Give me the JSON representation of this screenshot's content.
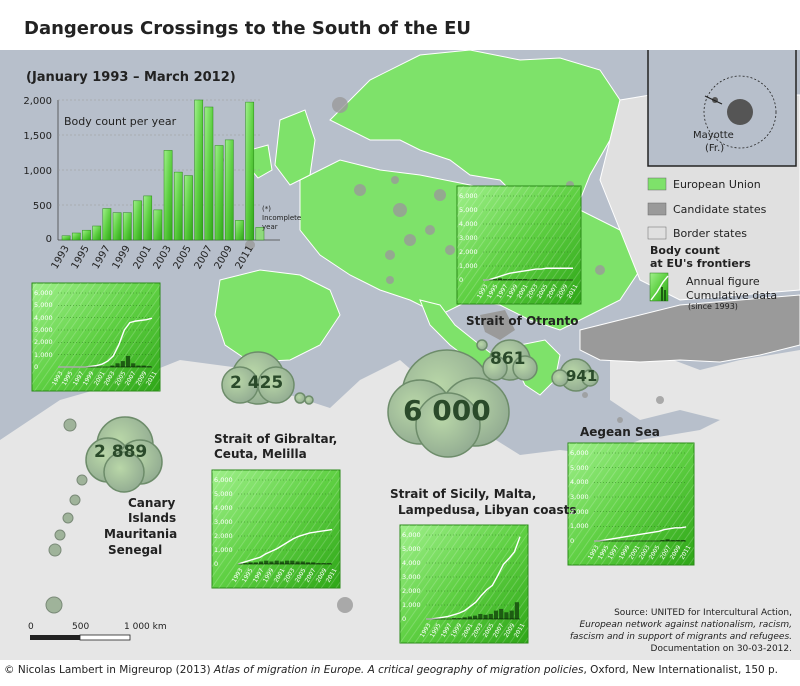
{
  "title": "Dangerous Crossings to the South of the EU",
  "period": "(January 1993 – March 2012)",
  "main_chart": {
    "label": "Body count per year",
    "incomplete_note": "(*) Incomplete year",
    "y_ticks": [
      "2,000",
      "1,500",
      "1,000",
      "500",
      "0"
    ],
    "x_ticks": [
      "1993",
      "1995",
      "1997",
      "1999",
      "2001",
      "2003",
      "2005",
      "2007",
      "2009",
      "2011"
    ]
  },
  "chart_data": {
    "type": "bar",
    "title": "Body count per year",
    "categories": [
      "1993",
      "1994",
      "1995",
      "1996",
      "1997",
      "1998",
      "1999",
      "2000",
      "2001",
      "2002",
      "2003",
      "2004",
      "2005",
      "2006",
      "2007",
      "2008",
      "2009",
      "2010",
      "2011",
      "2012"
    ],
    "values": [
      60,
      100,
      140,
      200,
      450,
      390,
      390,
      560,
      630,
      430,
      1280,
      970,
      920,
      2000,
      1900,
      1350,
      1430,
      280,
      1970,
      180
    ],
    "ylim": [
      0,
      2000
    ]
  },
  "legend": {
    "eu": "European Union",
    "candidate": "Candidate states",
    "border": "Border states",
    "body_title_1": "Body count",
    "body_title_2": "at EU's frontiers",
    "annual": "Annual figure",
    "cumulative": "Cumulative data",
    "since": "(since 1993)"
  },
  "inset": {
    "label_1": "Mayotte",
    "label_2": "(Fr.)"
  },
  "regions": {
    "otranto": {
      "label": "Strait of Otranto",
      "count": "861"
    },
    "gibraltar": {
      "label_1": "Strait of Gibraltar,",
      "label_2": "Ceuta, Melilla",
      "count": "2 425"
    },
    "sicily": {
      "label_1": "Strait of Sicily, Malta,",
      "label_2": "Lampedusa, Libyan coasts",
      "count": "6 000"
    },
    "aegean": {
      "label": "Aegean Sea",
      "count": "941"
    },
    "canary": {
      "label_1": "Canary",
      "label_2": "Islands",
      "label_3": "Mauritania",
      "label_4": "Senegal",
      "count": "2 889"
    }
  },
  "mini_axis": {
    "y": [
      "6,000",
      "5,000",
      "4,000",
      "3,000",
      "2,000",
      "1,000",
      "0"
    ],
    "x": [
      "1993",
      "1995",
      "1997",
      "1999",
      "2001",
      "2003",
      "2005",
      "2007",
      "2009",
      "2011"
    ]
  },
  "scale": {
    "t0": "0",
    "t1": "500",
    "t2": "1 000 km"
  },
  "source": {
    "line1": "Source: UNITED for Intercultural Action,",
    "line2": "European network against nationalism, racism,",
    "line3": "fascism and in support of migrants and refugees.",
    "line4": "Documentation on 30-03-2012."
  },
  "credit": {
    "pre": "© Nicolas Lambert in Migreurop (2013) ",
    "italic": "Atlas of migration in Europe. A critical geography of migration policies",
    "post": ", Oxford, New Internationalist, 150 p."
  },
  "colors": {
    "eu": "#7ee26a",
    "candidate": "#9a9a9a",
    "sea": "#b7bfcb",
    "land": "#e7e7e7",
    "chart_green": "#3fb32a"
  }
}
